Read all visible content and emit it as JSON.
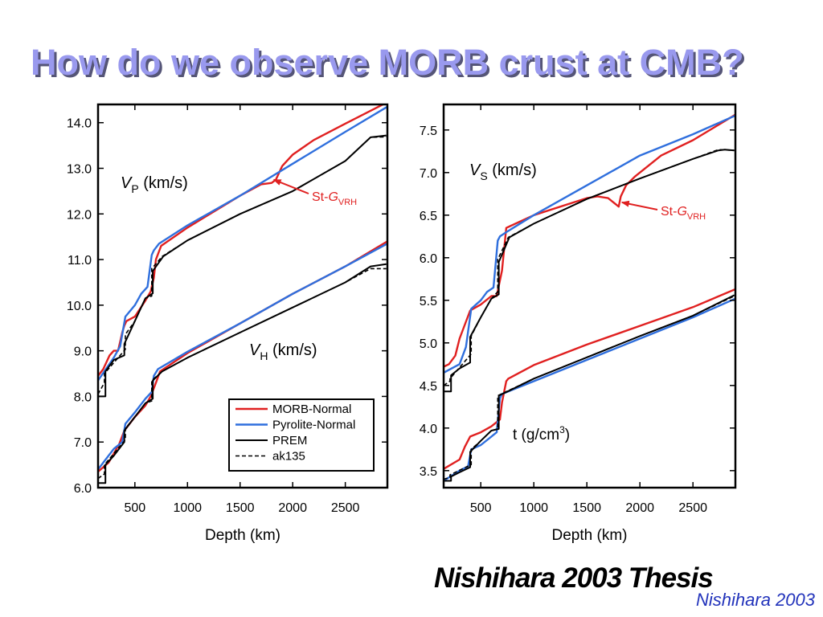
{
  "slide": {
    "title": "How do we observe MORB crust at CMB?",
    "thesis_label": "Nishihara 2003 Thesis",
    "credit": "Nishihara 2003"
  },
  "colors": {
    "title": "#9999ee",
    "morb": "#e02020",
    "pyrolite": "#2f6fdd",
    "prem": "#000000",
    "credit": "#2233bb"
  },
  "chart_data": [
    {
      "type": "line",
      "xlabel": "Depth (km)",
      "xlim": [
        150,
        2900
      ],
      "ylim": [
        6.0,
        14.4
      ],
      "x_ticks": [
        500,
        1000,
        1500,
        2000,
        2500
      ],
      "y_ticks": [
        6.0,
        7.0,
        8.0,
        9.0,
        10.0,
        11.0,
        12.0,
        13.0,
        14.0
      ],
      "y_tick_labels": [
        "6.0",
        "7.0",
        "8.0",
        "9.0",
        "10.0",
        "11.0",
        "12.0",
        "13.0",
        "14.0"
      ],
      "grid": false,
      "legend_position": "bottom-right",
      "legend": [
        "MORB-Normal",
        "Pyrolite-Normal",
        "PREM",
        "ak135"
      ],
      "annotations": {
        "vp": {
          "main": "V",
          "sub": "P",
          "rest": " (km/s)"
        },
        "vh": {
          "main": "V",
          "sub": "H",
          "rest": " (km/s)"
        },
        "transition": {
          "main": "St-",
          "italic": "G",
          "sub": "VRH",
          "arrow_to": [
            1820,
            12.75
          ]
        }
      },
      "series": [
        {
          "name": "MORB-Normal",
          "group": "Vp",
          "style": "morb",
          "x": [
            150,
            200,
            260,
            300,
            340,
            380,
            400,
            420,
            500,
            600,
            650,
            680,
            700,
            750,
            1000,
            1500,
            1700,
            1800,
            1840,
            1900,
            2000,
            2200,
            2500,
            2900
          ],
          "y": [
            8.45,
            8.6,
            8.9,
            9.0,
            9.0,
            9.4,
            9.55,
            9.65,
            9.75,
            10.1,
            10.3,
            10.6,
            11.0,
            11.3,
            11.7,
            12.4,
            12.65,
            12.68,
            12.75,
            13.05,
            13.3,
            13.62,
            13.98,
            14.45
          ]
        },
        {
          "name": "Pyrolite-Normal",
          "group": "Vp",
          "style": "pyrolite",
          "x": [
            150,
            300,
            360,
            410,
            500,
            560,
            620,
            660,
            680,
            730,
            1000,
            1500,
            2000,
            2500,
            2900
          ],
          "y": [
            8.35,
            8.85,
            9.1,
            9.75,
            10.0,
            10.25,
            10.4,
            11.1,
            11.2,
            11.35,
            11.75,
            12.4,
            13.1,
            13.8,
            14.35
          ]
        },
        {
          "name": "PREM",
          "group": "Vp",
          "style": "prem",
          "x": [
            150,
            220,
            220,
            300,
            400,
            400,
            500,
            600,
            670,
            670,
            770,
            1000,
            1500,
            2000,
            2500,
            2740,
            2740,
            2890
          ],
          "y": [
            8.0,
            8.0,
            8.55,
            8.8,
            8.9,
            9.15,
            9.65,
            10.15,
            10.26,
            10.75,
            11.07,
            11.42,
            12.0,
            12.5,
            13.16,
            13.68,
            13.68,
            13.72
          ]
        },
        {
          "name": "ak135",
          "group": "Vp",
          "style": "ak135",
          "x": [
            150,
            210,
            210,
            410,
            410,
            500,
            600,
            660,
            660,
            760,
            1000,
            1500,
            2000,
            2500,
            2740,
            2890
          ],
          "y": [
            8.05,
            8.3,
            8.5,
            9.03,
            9.36,
            9.65,
            10.15,
            10.2,
            10.8,
            11.07,
            11.42,
            12.0,
            12.5,
            13.16,
            13.68,
            13.69
          ]
        },
        {
          "name": "MORB-Normal",
          "group": "Vh",
          "style": "morb",
          "x": [
            150,
            250,
            350,
            400,
            500,
            600,
            650,
            700,
            740,
            1000,
            1500,
            2000,
            2500,
            2900
          ],
          "y": [
            6.35,
            6.55,
            6.95,
            7.25,
            7.55,
            7.8,
            8.0,
            8.3,
            8.55,
            8.95,
            9.6,
            10.25,
            10.85,
            11.4
          ]
        },
        {
          "name": "Pyrolite-Normal",
          "group": "Vh",
          "style": "pyrolite",
          "x": [
            150,
            300,
            380,
            410,
            500,
            600,
            660,
            680,
            720,
            1000,
            1500,
            2000,
            2500,
            2900
          ],
          "y": [
            6.4,
            6.85,
            7.0,
            7.4,
            7.65,
            7.95,
            8.1,
            8.45,
            8.6,
            8.98,
            9.6,
            10.25,
            10.85,
            11.35
          ]
        },
        {
          "name": "PREM",
          "group": "Vh",
          "style": "prem",
          "x": [
            150,
            220,
            220,
            300,
            400,
            400,
            500,
            600,
            670,
            670,
            760,
            1000,
            1500,
            2000,
            2500,
            2740,
            2740,
            2890
          ],
          "y": [
            6.1,
            6.1,
            6.5,
            6.7,
            7.0,
            7.25,
            7.55,
            7.85,
            7.95,
            8.35,
            8.55,
            8.85,
            9.4,
            9.95,
            10.5,
            10.85,
            10.85,
            10.9
          ]
        },
        {
          "name": "ak135",
          "group": "Vh",
          "style": "ak135",
          "x": [
            150,
            210,
            210,
            410,
            410,
            500,
            600,
            660,
            660,
            760,
            1000,
            1500,
            2000,
            2500,
            2740,
            2890
          ],
          "y": [
            6.2,
            6.3,
            6.5,
            7.05,
            7.3,
            7.55,
            7.85,
            7.9,
            8.35,
            8.55,
            8.85,
            9.4,
            9.95,
            10.5,
            10.8,
            10.8
          ]
        }
      ]
    },
    {
      "type": "line",
      "xlabel": "Depth (km)",
      "xlim": [
        150,
        2900
      ],
      "ylim": [
        3.3,
        7.8
      ],
      "x_ticks": [
        500,
        1000,
        1500,
        2000,
        2500
      ],
      "y_ticks": [
        3.5,
        4.0,
        4.5,
        5.0,
        5.5,
        6.0,
        6.5,
        7.0,
        7.5
      ],
      "y_tick_labels": [
        "3.5",
        "4.0",
        "4.5",
        "5.0",
        "5.5",
        "6.0",
        "6.5",
        "7.0",
        "7.5"
      ],
      "grid": false,
      "annotations": {
        "vs": {
          "main": "V",
          "sub": "S",
          "rest": " (km/s)"
        },
        "density": {
          "main": "t  (g/cm",
          "sup": "3",
          "rest": ")"
        },
        "transition": {
          "main": "St-",
          "italic": "G",
          "sub": "VRH",
          "arrow_to": [
            1830,
            6.65
          ]
        }
      },
      "series": [
        {
          "name": "MORB-Normal",
          "group": "Vs",
          "style": "morb",
          "x": [
            150,
            200,
            260,
            300,
            400,
            500,
            600,
            650,
            700,
            740,
            1000,
            1500,
            1600,
            1700,
            1780,
            1800,
            1820,
            1870,
            1950,
            2200,
            2500,
            2900
          ],
          "y": [
            4.72,
            4.75,
            4.85,
            5.05,
            5.38,
            5.45,
            5.55,
            5.55,
            5.85,
            6.35,
            6.5,
            6.7,
            6.72,
            6.7,
            6.62,
            6.6,
            6.72,
            6.85,
            6.95,
            7.2,
            7.38,
            7.68
          ]
        },
        {
          "name": "Pyrolite-Normal",
          "group": "Vs",
          "style": "pyrolite",
          "x": [
            150,
            300,
            360,
            410,
            500,
            560,
            620,
            660,
            680,
            740,
            1000,
            1500,
            2000,
            2500,
            2900
          ],
          "y": [
            4.65,
            4.75,
            4.95,
            5.4,
            5.5,
            5.6,
            5.65,
            6.2,
            6.25,
            6.3,
            6.5,
            6.85,
            7.2,
            7.45,
            7.67
          ]
        },
        {
          "name": "PREM",
          "group": "Vs",
          "style": "prem",
          "x": [
            150,
            220,
            220,
            300,
            400,
            400,
            500,
            600,
            670,
            670,
            770,
            1000,
            1500,
            2000,
            2500,
            2740,
            2800,
            2890
          ],
          "y": [
            4.43,
            4.43,
            4.62,
            4.7,
            4.77,
            5.07,
            5.3,
            5.52,
            5.57,
            5.95,
            6.24,
            6.4,
            6.69,
            6.93,
            7.16,
            7.26,
            7.27,
            7.26
          ]
        },
        {
          "name": "ak135",
          "group": "Vs",
          "style": "ak135",
          "x": [
            150,
            210,
            210,
            410,
            410,
            500,
            600,
            660,
            660,
            760,
            1000,
            1500,
            2000,
            2500,
            2740,
            2890
          ],
          "y": [
            4.5,
            4.55,
            4.58,
            4.87,
            5.08,
            5.3,
            5.52,
            5.6,
            5.98,
            6.24,
            6.4,
            6.69,
            6.93,
            7.16,
            7.27,
            7.26
          ]
        },
        {
          "name": "MORB-Normal",
          "group": "rho",
          "style": "morb",
          "x": [
            150,
            300,
            350,
            400,
            500,
            600,
            680,
            700,
            740,
            760,
            1000,
            1500,
            2000,
            2500,
            2900
          ],
          "y": [
            3.52,
            3.63,
            3.78,
            3.9,
            3.95,
            4.02,
            4.1,
            4.3,
            4.55,
            4.58,
            4.74,
            4.98,
            5.2,
            5.42,
            5.63
          ]
        },
        {
          "name": "Pyrolite-Normal",
          "group": "rho",
          "style": "pyrolite",
          "x": [
            150,
            300,
            380,
            410,
            500,
            600,
            650,
            680,
            700,
            1000,
            1500,
            2000,
            2500,
            2900
          ],
          "y": [
            3.38,
            3.5,
            3.55,
            3.75,
            3.8,
            3.9,
            3.95,
            4.35,
            4.4,
            4.55,
            4.8,
            5.05,
            5.3,
            5.52
          ]
        },
        {
          "name": "PREM",
          "group": "rho",
          "style": "prem",
          "x": [
            150,
            220,
            220,
            300,
            400,
            400,
            500,
            600,
            670,
            670,
            770,
            1000,
            1500,
            2000,
            2500,
            2890
          ],
          "y": [
            3.38,
            3.38,
            3.43,
            3.48,
            3.54,
            3.72,
            3.85,
            3.97,
            3.99,
            4.38,
            4.44,
            4.58,
            4.83,
            5.08,
            5.32,
            5.56
          ]
        },
        {
          "name": "ak135",
          "group": "rho",
          "style": "ak135",
          "x": [
            150,
            210,
            210,
            410,
            410,
            500,
            600,
            660,
            660,
            760,
            1000,
            1500,
            2000,
            2500,
            2890
          ],
          "y": [
            3.4,
            3.42,
            3.45,
            3.57,
            3.75,
            3.85,
            3.97,
            3.99,
            4.38,
            4.44,
            4.58,
            4.83,
            5.08,
            5.32,
            5.55
          ]
        }
      ]
    }
  ]
}
